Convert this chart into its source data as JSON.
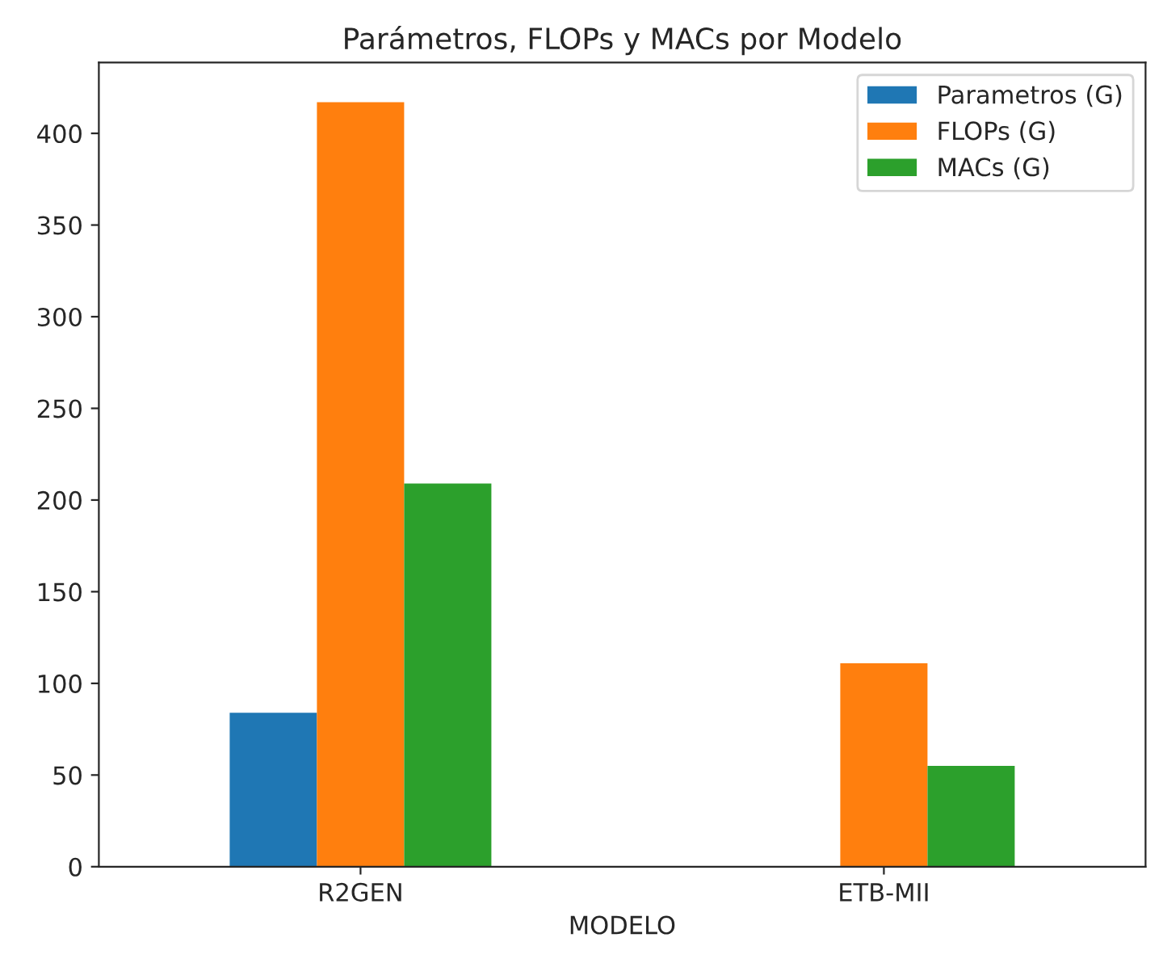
{
  "chart_data": {
    "type": "bar",
    "title": "Parámetros, FLOPs y MACs por Modelo",
    "xlabel": "MODELO",
    "categories": [
      "R2GEN",
      "ETB-MII"
    ],
    "series": [
      {
        "name": "Parametros (G)",
        "color": "#1f77b4",
        "values": [
          84,
          null
        ]
      },
      {
        "name": "FLOPs (G)",
        "color": "#ff7f0e",
        "values": [
          417,
          111
        ]
      },
      {
        "name": "MACs (G)",
        "color": "#2ca02c",
        "values": [
          209,
          55
        ]
      }
    ],
    "ylim": [
      0,
      438.6
    ],
    "yticks": [
      0,
      50,
      100,
      150,
      200,
      250,
      300,
      350,
      400
    ],
    "legend": "top right",
    "grid": false
  }
}
